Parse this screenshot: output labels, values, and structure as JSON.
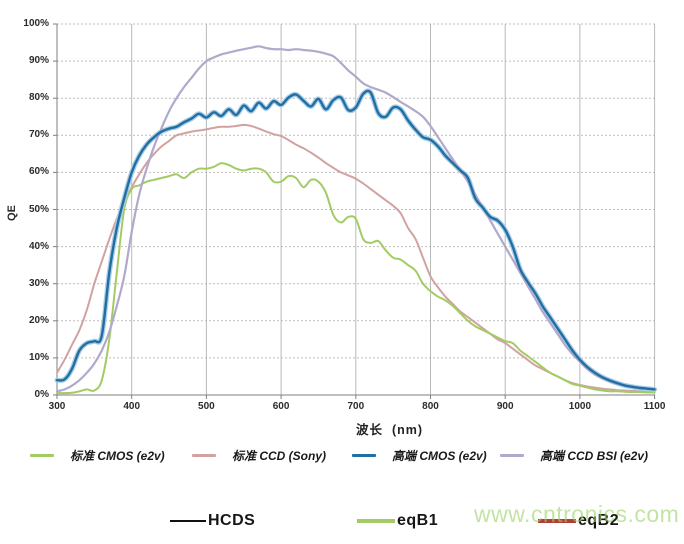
{
  "watermark": "www.cntronics.com",
  "axes": {
    "y_label": "QE",
    "x_label": "波长  (nm)",
    "y_ticks": [
      "100%",
      "90%",
      "80%",
      "70%",
      "60%",
      "50%",
      "40%",
      "30%",
      "20%",
      "10%",
      "0%"
    ],
    "x_ticks": [
      "300",
      "400",
      "500",
      "600",
      "700",
      "800",
      "900",
      "1000",
      "1100"
    ]
  },
  "legend_primary": [
    {
      "label": "标准 CMOS (e2v)",
      "color": "#a2cc63"
    },
    {
      "label": "标准 CCD (Sony)",
      "color": "#d2a2a2"
    },
    {
      "label": "高端 CMOS (e2v)",
      "color": "#1f6fa3"
    },
    {
      "label": "高端 CCD BSI (e2v)",
      "color": "#b0a9cb"
    }
  ],
  "legend_secondary": [
    {
      "label": "HCDS",
      "color": "#111111"
    },
    {
      "label": "eqB1",
      "color": "#a2cc63"
    },
    {
      "label": "eqB2",
      "color": "#b23c36"
    }
  ],
  "chart_data": {
    "type": "line",
    "title": "",
    "xlabel": "波长 (nm)",
    "ylabel": "QE",
    "xlim": [
      300,
      1100
    ],
    "ylim": [
      0,
      100
    ],
    "y_unit": "%",
    "grid": true,
    "legend_position": "bottom",
    "x_start": 300,
    "x_step": 10,
    "series": [
      {
        "name": "标准 CMOS (e2v)",
        "color": "#a2cc63",
        "width": 2,
        "values": [
          0.5,
          0.5,
          0.6,
          1,
          1.5,
          1.2,
          4,
          15,
          33,
          50,
          55.5,
          56.5,
          57.5,
          58,
          58.5,
          59,
          59.5,
          58.5,
          60,
          61,
          61,
          61.5,
          62.5,
          62,
          61,
          60.5,
          61,
          61,
          60,
          57.5,
          57.5,
          59,
          58.5,
          56,
          58,
          57.5,
          54.5,
          48.5,
          46.5,
          48,
          47.5,
          42,
          41,
          41.5,
          39,
          37,
          36.5,
          35,
          33.5,
          30,
          28,
          26.5,
          25.5,
          24,
          22,
          20,
          18.5,
          17.5,
          16.5,
          15.5,
          14.5,
          14,
          12,
          10.5,
          9,
          7.5,
          6,
          5,
          4,
          3,
          2.5,
          2,
          1.5,
          1.2,
          1,
          1,
          0.9,
          0.8,
          0.8,
          0.7,
          0.7
        ]
      },
      {
        "name": "标准 CCD (Sony)",
        "color": "#d2a2a2",
        "width": 2,
        "values": [
          6,
          9.5,
          13.5,
          17.5,
          23,
          30,
          36,
          42,
          47.5,
          52,
          56,
          59.5,
          62.5,
          65,
          67,
          68.5,
          70,
          70.5,
          71,
          71.3,
          71.6,
          72,
          72.3,
          72.3,
          72.5,
          72.8,
          72.5,
          71.8,
          71,
          70.3,
          69.8,
          68.7,
          67.5,
          66.5,
          65.3,
          64,
          62.5,
          61.2,
          60,
          59.2,
          58.3,
          57,
          55.5,
          54,
          52.5,
          51,
          49,
          45,
          42,
          37,
          32,
          29,
          26.5,
          24.5,
          22.5,
          21,
          19.5,
          18,
          16.5,
          15,
          14,
          12.5,
          11,
          9.5,
          8,
          7,
          6,
          5,
          4,
          3.2,
          2.7,
          2.3,
          2,
          1.7,
          1.5,
          1.3,
          1.2,
          1.1,
          1,
          1,
          0.9
        ]
      },
      {
        "name": "高端 CMOS (e2v)",
        "color": "#1f6fa3",
        "halo_color": "#a9cbe6",
        "width": 2.4,
        "values": [
          4,
          4.2,
          7,
          12,
          14,
          14.5,
          16,
          33,
          45,
          53,
          60,
          64.5,
          67.5,
          69.5,
          71,
          71.8,
          72.3,
          73.5,
          74.5,
          75.8,
          74.8,
          76.2,
          75.2,
          77,
          75.5,
          78,
          76.5,
          78.8,
          77.2,
          79.2,
          78.2,
          80.2,
          81,
          79.3,
          77.8,
          79.8,
          77,
          79.5,
          80.2,
          76.8,
          77.5,
          81.2,
          81.5,
          76,
          75,
          77.5,
          77,
          74,
          71.5,
          69.5,
          68.8,
          67,
          64.5,
          62.5,
          60.5,
          58.5,
          53,
          50.5,
          48,
          47,
          44.5,
          40,
          34,
          30.5,
          27.5,
          24,
          21,
          18,
          15,
          12,
          9.5,
          7.5,
          6,
          4.8,
          3.9,
          3.2,
          2.6,
          2.2,
          1.9,
          1.7,
          1.5
        ]
      },
      {
        "name": "高端 CCD BSI (e2v)",
        "color": "#b0a9cb",
        "width": 2.2,
        "values": [
          1,
          1.5,
          2.5,
          4,
          6,
          8.5,
          12,
          17,
          24,
          32,
          44,
          54,
          61,
          67,
          72,
          76.5,
          80,
          83,
          85.5,
          88,
          90,
          91,
          91.8,
          92.3,
          92.8,
          93.2,
          93.6,
          94,
          93.5,
          93.2,
          93.2,
          93,
          93.2,
          93,
          92.8,
          92.5,
          92,
          91.3,
          89.5,
          87.5,
          85.8,
          84,
          83,
          82.3,
          81.5,
          80.3,
          79,
          77.8,
          76.5,
          75,
          72.5,
          69.5,
          66.5,
          63.5,
          60.5,
          57.5,
          54,
          50.5,
          47,
          43.5,
          40,
          36.5,
          33,
          29.5,
          26,
          22.5,
          19.5,
          16.5,
          13.5,
          11,
          9,
          7,
          5.5,
          4.5,
          3.7,
          3,
          2.5,
          2.2,
          2,
          1.8,
          1.6
        ]
      }
    ]
  }
}
